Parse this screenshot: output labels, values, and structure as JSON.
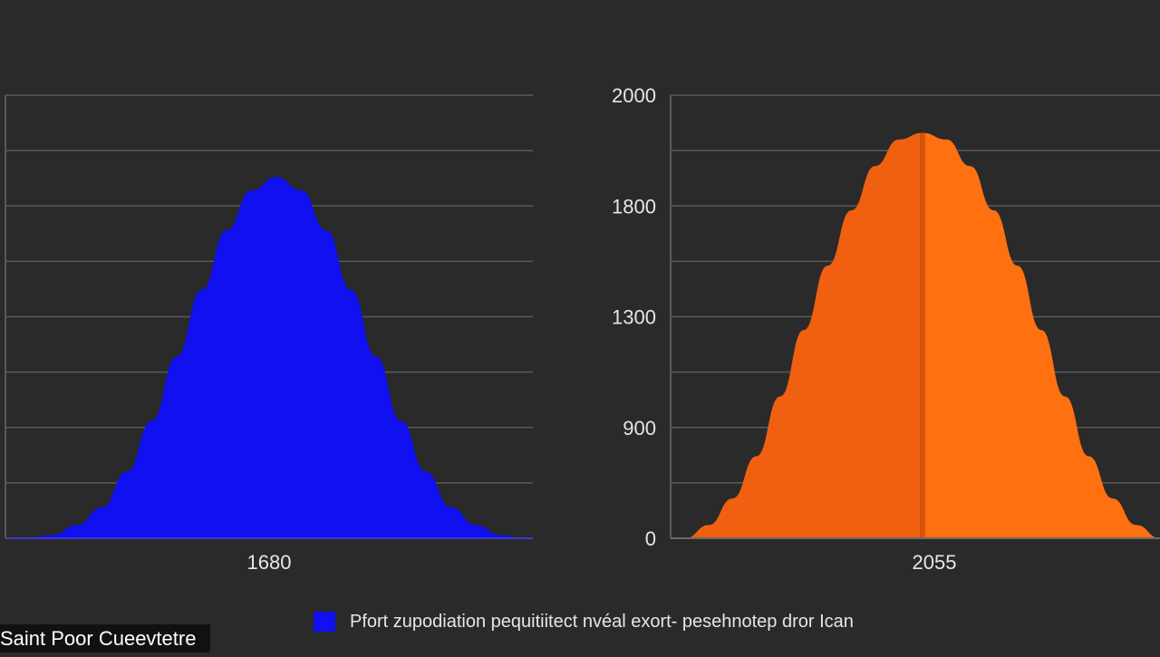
{
  "colors": {
    "background": "#2a2a2a",
    "grid": "#5a5a5a",
    "text": "#e6e6e6",
    "blue": "#1010f0",
    "orange_left": "#f06010",
    "orange_right": "#ff7010"
  },
  "chart_data": [
    {
      "type": "area",
      "title": "",
      "xlabel": "1680",
      "ylabel": "",
      "ylim": [
        0,
        2000
      ],
      "yticks": [],
      "grid": true,
      "series": [
        {
          "color": "#1010f0",
          "x": [
            0,
            0.05,
            0.1,
            0.15,
            0.2,
            0.25,
            0.3,
            0.35,
            0.4,
            0.45,
            0.5,
            0.55,
            0.6,
            0.65,
            0.7,
            0.75,
            0.8,
            0.85,
            0.9,
            0.95,
            1
          ],
          "values": [
            0,
            15,
            60,
            140,
            300,
            530,
            820,
            1120,
            1390,
            1570,
            1630,
            1570,
            1390,
            1120,
            820,
            530,
            300,
            140,
            60,
            15,
            0
          ]
        }
      ]
    },
    {
      "type": "area",
      "title": "",
      "xlabel": "2055",
      "ylabel": "",
      "ylim": [
        0,
        2000
      ],
      "yticks": [
        "2000",
        "1800",
        "1300",
        "900",
        "0"
      ],
      "ytick_values": [
        2000,
        1500,
        1000,
        500,
        0
      ],
      "grid": true,
      "series": [
        {
          "color": "#ff7010",
          "x": [
            0,
            0.05,
            0.1,
            0.15,
            0.2,
            0.25,
            0.3,
            0.35,
            0.4,
            0.45,
            0.5,
            0.55,
            0.6,
            0.65,
            0.7,
            0.75,
            0.8,
            0.85,
            0.9,
            0.95,
            1
          ],
          "values": [
            0,
            60,
            180,
            370,
            640,
            940,
            1230,
            1480,
            1680,
            1800,
            1830,
            1800,
            1680,
            1480,
            1230,
            940,
            640,
            370,
            180,
            60,
            0
          ]
        }
      ]
    }
  ],
  "legend": {
    "label": "Pfort zupodiation pequitiitect nvéal exort- pesehnotep dror Ican",
    "color": "#1010f0"
  },
  "caption": "Saint Poor Cueevtetre"
}
